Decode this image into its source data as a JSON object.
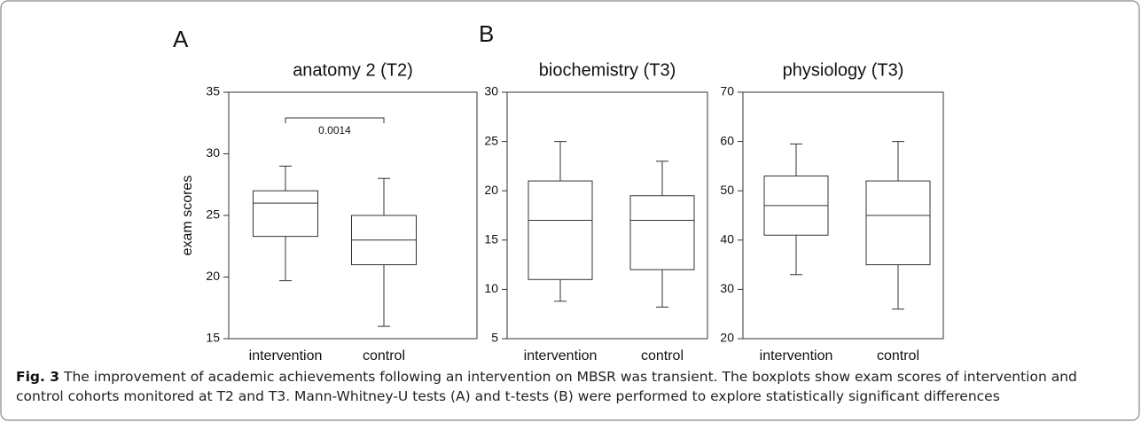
{
  "chart_data": [
    {
      "type": "box",
      "panel": "A",
      "title": "anatomy 2 (T2)",
      "y_label": "exam scores",
      "categories": [
        "intervention",
        "control"
      ],
      "boxes": [
        {
          "whisker_low": 19.7,
          "q1": 23.3,
          "median": 26,
          "q3": 27,
          "whisker_high": 29
        },
        {
          "whisker_low": 16,
          "q1": 21,
          "median": 23,
          "q3": 25,
          "whisker_high": 28
        }
      ],
      "ylim": [
        15,
        35
      ],
      "yticks": [
        15,
        20,
        25,
        30,
        35
      ],
      "annotation": {
        "p_value": 0.0014
      }
    },
    {
      "type": "box",
      "panel": "B",
      "title": "biochemistry (T3)",
      "categories": [
        "intervention",
        "control"
      ],
      "boxes": [
        {
          "whisker_low": 8.8,
          "q1": 11,
          "median": 17,
          "q3": 21,
          "whisker_high": 25
        },
        {
          "whisker_low": 8.2,
          "q1": 12,
          "median": 17,
          "q3": 19.5,
          "whisker_high": 23
        }
      ],
      "ylim": [
        5,
        30
      ],
      "yticks": [
        5,
        10,
        15,
        20,
        25,
        30
      ]
    },
    {
      "type": "box",
      "title": "physiology (T3)",
      "categories": [
        "intervention",
        "control"
      ],
      "boxes": [
        {
          "whisker_low": 33,
          "q1": 41,
          "median": 47,
          "q3": 53,
          "whisker_high": 59.5
        },
        {
          "whisker_low": 26,
          "q1": 35,
          "median": 45,
          "q3": 52,
          "whisker_high": 60
        }
      ],
      "ylim": [
        20,
        70
      ],
      "yticks": [
        20,
        30,
        40,
        50,
        60,
        70
      ]
    }
  ],
  "caption": {
    "label": "Fig. 3",
    "text": "The improvement of academic achievements following an intervention on MBSR was transient. The boxplots show exam scores of intervention and control cohorts monitored at T2 and T3. Mann-Whitney-U tests (A) and t-tests (B) were performed to explore statistically significant differences"
  }
}
